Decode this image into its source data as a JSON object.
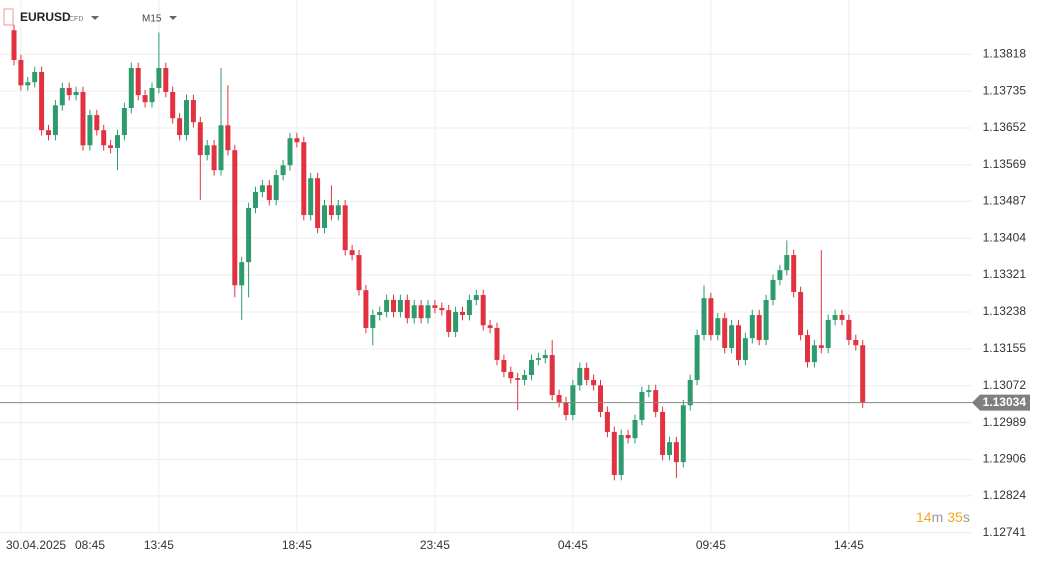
{
  "header": {
    "symbol": "EURUSD",
    "instrument_type": "CFD",
    "timeframe": "M15"
  },
  "countdown": {
    "minutes": "14",
    "minutes_unit": "m",
    "seconds": "35",
    "seconds_unit": "s"
  },
  "chart_data": {
    "type": "candlestick",
    "first_date": "30.04.2025",
    "up_color": "#2e9b6e",
    "down_color": "#e2323f",
    "grid": true,
    "current_price": 1.13034,
    "ylim": [
      1.12673,
      1.1394
    ],
    "yticks": [
      1.13818,
      1.13735,
      1.13652,
      1.13569,
      1.13487,
      1.13404,
      1.13321,
      1.13238,
      1.13155,
      1.13072,
      1.12989,
      1.12906,
      1.12824,
      1.12741
    ],
    "categories": [
      null,
      "08:45",
      null,
      null,
      null,
      null,
      null,
      null,
      null,
      null,
      null,
      null,
      null,
      null,
      null,
      null,
      null,
      null,
      null,
      null,
      null,
      "13:45",
      null,
      null,
      null,
      null,
      null,
      null,
      null,
      null,
      null,
      null,
      null,
      null,
      null,
      null,
      null,
      null,
      null,
      null,
      null,
      "18:45",
      null,
      null,
      null,
      null,
      null,
      null,
      null,
      null,
      null,
      null,
      null,
      null,
      null,
      null,
      null,
      null,
      null,
      null,
      null,
      "23:45",
      null,
      null,
      null,
      null,
      null,
      null,
      null,
      null,
      null,
      null,
      null,
      null,
      null,
      null,
      null,
      null,
      null,
      null,
      null,
      "04:45",
      null,
      null,
      null,
      null,
      null,
      null,
      null,
      null,
      null,
      null,
      null,
      null,
      null,
      null,
      null,
      null,
      null,
      null,
      null,
      "09:45",
      null,
      null,
      null,
      null,
      null,
      null,
      null,
      null,
      null,
      null,
      null,
      null,
      null,
      null,
      null,
      null,
      null,
      null,
      null,
      "14:45",
      null,
      null
    ],
    "open": [
      1.13872,
      1.13805,
      1.13748,
      1.13755,
      1.13778,
      1.13647,
      1.13636,
      1.13703,
      1.13742,
      1.13726,
      1.13733,
      1.13613,
      1.13681,
      1.13647,
      1.13613,
      1.13607,
      1.13636,
      1.13697,
      1.13787,
      1.13726,
      1.1371,
      1.13742,
      1.13787,
      1.13733,
      1.13674,
      1.13636,
      1.13715,
      1.13665,
      1.13591,
      1.13613,
      1.13557,
      1.13658,
      1.13602,
      1.13298,
      1.1335,
      1.13472,
      1.13508,
      1.13523,
      1.1349,
      1.13546,
      1.13568,
      1.13629,
      1.1362,
      1.13456,
      1.13539,
      1.13427,
      1.13478,
      1.13456,
      1.13478,
      1.13377,
      1.13366,
      1.13287,
      1.13202,
      1.13231,
      1.13238,
      1.13265,
      1.13238,
      1.13265,
      1.13224,
      1.13253,
      1.13224,
      1.13253,
      1.13247,
      1.13242,
      1.13193,
      1.13238,
      1.13231,
      1.13265,
      1.13276,
      1.13208,
      1.13202,
      1.1313,
      1.13103,
      1.13089,
      1.13085,
      1.13096,
      1.1313,
      1.13134,
      1.13141,
      1.13051,
      1.13035,
      1.13006,
      1.13073,
      1.13112,
      1.13085,
      1.13073,
      1.13013,
      1.12968,
      1.12871,
      1.12961,
      1.12954,
      1.12995,
      1.13058,
      1.13062,
      1.13013,
      1.12916,
      1.12945,
      1.129,
      1.13028,
      1.13085,
      1.13186,
      1.13269,
      1.13186,
      1.13224,
      1.13157,
      1.13208,
      1.1313,
      1.13179,
      1.13231,
      1.13175,
      1.13265,
      1.1331,
      1.13332,
      1.13366,
      1.13283,
      1.13186,
      1.13125,
      1.13163,
      1.13157,
      1.1322,
      1.13231,
      1.1322,
      1.13175,
      1.13163
    ],
    "high": [
      1.13884,
      1.13817,
      1.13767,
      1.1379,
      1.1379,
      1.13659,
      1.13715,
      1.13754,
      1.13754,
      1.13745,
      1.13745,
      1.13693,
      1.13693,
      1.13659,
      1.13625,
      1.13648,
      1.13709,
      1.13799,
      1.13799,
      1.13738,
      1.13754,
      1.13867,
      1.13799,
      1.13745,
      1.13686,
      1.13727,
      1.13727,
      1.13677,
      1.13625,
      1.13625,
      1.13787,
      1.13748,
      1.13614,
      1.13362,
      1.13484,
      1.1352,
      1.13535,
      1.13535,
      1.13558,
      1.1358,
      1.13641,
      1.13641,
      1.13632,
      1.13551,
      1.13551,
      1.1349,
      1.13523,
      1.1349,
      1.1349,
      1.13389,
      1.13378,
      1.13299,
      1.13243,
      1.1325,
      1.13277,
      1.13277,
      1.13277,
      1.13277,
      1.13265,
      1.13265,
      1.13265,
      1.13265,
      1.13259,
      1.13254,
      1.1325,
      1.1325,
      1.13277,
      1.13288,
      1.13288,
      1.1322,
      1.13214,
      1.13142,
      1.13115,
      1.13101,
      1.13108,
      1.13142,
      1.13146,
      1.13153,
      1.13175,
      1.13063,
      1.13047,
      1.13085,
      1.13124,
      1.13124,
      1.13097,
      1.13085,
      1.13025,
      1.1298,
      1.12973,
      1.12973,
      1.13007,
      1.1307,
      1.13074,
      1.13074,
      1.13025,
      1.12957,
      1.12957,
      1.1304,
      1.13097,
      1.13198,
      1.13298,
      1.13281,
      1.13236,
      1.13236,
      1.1322,
      1.1322,
      1.13191,
      1.13243,
      1.13243,
      1.13277,
      1.13322,
      1.13344,
      1.13399,
      1.13378,
      1.13295,
      1.13198,
      1.13175,
      1.13377,
      1.13232,
      1.13243,
      1.13243,
      1.13232,
      1.13187,
      1.13175
    ],
    "low": [
      1.13793,
      1.13736,
      1.13736,
      1.13743,
      1.13635,
      1.13624,
      1.13624,
      1.13691,
      1.13714,
      1.13714,
      1.13601,
      1.13601,
      1.13635,
      1.13601,
      1.13595,
      1.13557,
      1.13624,
      1.13685,
      1.13714,
      1.13698,
      1.13698,
      1.1373,
      1.13721,
      1.13662,
      1.13624,
      1.13624,
      1.13653,
      1.1349,
      1.13579,
      1.13545,
      1.13545,
      1.1359,
      1.13271,
      1.1322,
      1.13271,
      1.1346,
      1.13496,
      1.13478,
      1.13478,
      1.13534,
      1.13556,
      1.13608,
      1.13444,
      1.13444,
      1.13415,
      1.13415,
      1.13444,
      1.13444,
      1.13365,
      1.13354,
      1.13275,
      1.1319,
      1.13163,
      1.13219,
      1.13226,
      1.13226,
      1.13226,
      1.13212,
      1.13212,
      1.13212,
      1.13212,
      1.13235,
      1.1323,
      1.13181,
      1.13181,
      1.13219,
      1.13219,
      1.13253,
      1.13196,
      1.1319,
      1.13118,
      1.13091,
      1.13077,
      1.13017,
      1.13073,
      1.13084,
      1.13118,
      1.13122,
      1.13039,
      1.13023,
      1.12994,
      1.12994,
      1.13061,
      1.13073,
      1.13061,
      1.13001,
      1.12956,
      1.12859,
      1.12859,
      1.12942,
      1.12942,
      1.12983,
      1.13046,
      1.13001,
      1.12904,
      1.12904,
      1.12864,
      1.12888,
      1.13016,
      1.13073,
      1.13174,
      1.13174,
      1.13174,
      1.13145,
      1.13145,
      1.13118,
      1.13118,
      1.13167,
      1.13163,
      1.13163,
      1.13253,
      1.13298,
      1.1332,
      1.13271,
      1.13174,
      1.13113,
      1.13113,
      1.13145,
      1.13145,
      1.13208,
      1.13208,
      1.13163,
      1.13151,
      1.13022
    ],
    "close": [
      1.13805,
      1.13748,
      1.13755,
      1.13778,
      1.13647,
      1.13636,
      1.13703,
      1.13742,
      1.13726,
      1.13733,
      1.13613,
      1.13681,
      1.13647,
      1.13613,
      1.13607,
      1.13636,
      1.13697,
      1.13787,
      1.13726,
      1.1371,
      1.13742,
      1.13787,
      1.13733,
      1.13674,
      1.13636,
      1.13715,
      1.13665,
      1.13591,
      1.13613,
      1.13557,
      1.13658,
      1.13602,
      1.13298,
      1.1335,
      1.13472,
      1.13508,
      1.13523,
      1.1349,
      1.13546,
      1.13568,
      1.13629,
      1.1362,
      1.13456,
      1.13539,
      1.13427,
      1.13478,
      1.13456,
      1.13478,
      1.13377,
      1.13366,
      1.13287,
      1.13202,
      1.13231,
      1.13238,
      1.13265,
      1.13238,
      1.13265,
      1.13224,
      1.13253,
      1.13224,
      1.13253,
      1.13247,
      1.13242,
      1.13193,
      1.13238,
      1.13231,
      1.13265,
      1.13276,
      1.13208,
      1.13202,
      1.1313,
      1.13103,
      1.13089,
      1.13085,
      1.13096,
      1.1313,
      1.13134,
      1.13141,
      1.13051,
      1.13035,
      1.13006,
      1.13073,
      1.13112,
      1.13085,
      1.13073,
      1.13013,
      1.12968,
      1.12871,
      1.12961,
      1.12954,
      1.12995,
      1.13058,
      1.13062,
      1.13013,
      1.12916,
      1.12945,
      1.129,
      1.13028,
      1.13085,
      1.13186,
      1.13269,
      1.13186,
      1.13224,
      1.13157,
      1.13208,
      1.1313,
      1.13179,
      1.13231,
      1.13175,
      1.13265,
      1.1331,
      1.13332,
      1.13366,
      1.13283,
      1.13186,
      1.13125,
      1.13163,
      1.13157,
      1.1322,
      1.13231,
      1.1322,
      1.13175,
      1.13163,
      1.13034
    ]
  }
}
